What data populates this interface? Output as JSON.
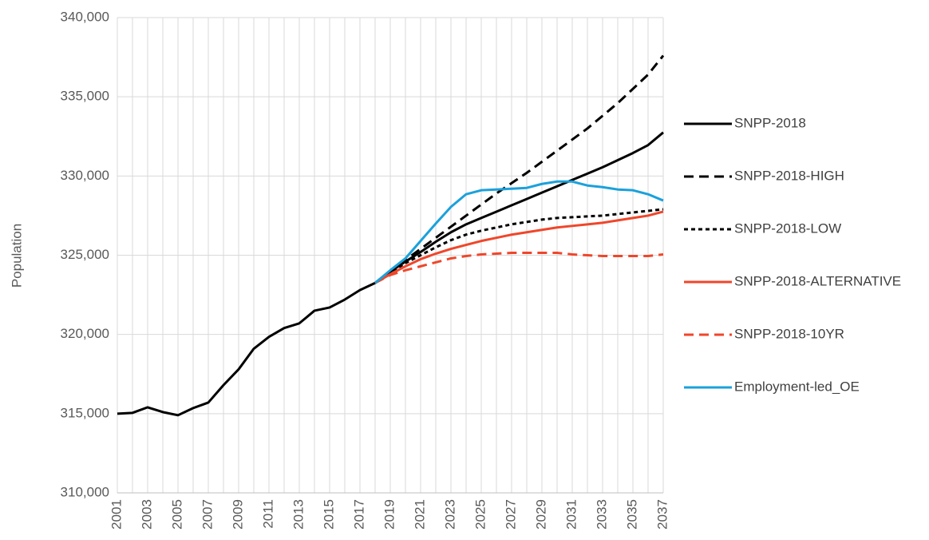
{
  "chart_data": {
    "type": "line",
    "y_label": "Population",
    "categories": [
      "2001",
      null,
      "2003",
      null,
      "2005",
      null,
      "2007",
      null,
      "2009",
      null,
      "2011",
      null,
      "2013",
      null,
      "2015",
      null,
      "2017",
      null,
      "2019",
      null,
      "2021",
      null,
      "2023",
      null,
      "2025",
      null,
      "2027",
      null,
      "2029",
      null,
      "2031",
      null,
      "2033",
      null,
      "2035",
      null,
      "2037"
    ],
    "ylim": [
      310000,
      340000
    ],
    "yticks": [
      {
        "value": 310000,
        "label": "310,000"
      },
      {
        "value": 315000,
        "label": "315,000"
      },
      {
        "value": 320000,
        "label": "320,000"
      },
      {
        "value": 325000,
        "label": "325,000"
      },
      {
        "value": 330000,
        "label": "330,000"
      },
      {
        "value": 335000,
        "label": "335,000"
      },
      {
        "value": 340000,
        "label": "340,000"
      }
    ],
    "grid": true,
    "legend": "right",
    "series": [
      {
        "name": "SNPP-2018",
        "color": "#000000",
        "style": "solid",
        "values": [
          315000,
          315050,
          315400,
          315100,
          314900,
          315350,
          315700,
          316800,
          317800,
          319100,
          319850,
          320400,
          320700,
          321500,
          321700,
          322200,
          322800,
          323250,
          323950,
          324600,
          325200,
          325850,
          326450,
          326950,
          327350,
          327750,
          328150,
          328550,
          328950,
          329350,
          329750,
          330150,
          330550,
          331000,
          331450,
          331950,
          332750
        ]
      },
      {
        "name": "SNPP-2018-HIGH",
        "color": "#000000",
        "style": "dash",
        "values": [
          null,
          null,
          null,
          null,
          null,
          null,
          null,
          null,
          null,
          null,
          null,
          null,
          null,
          null,
          null,
          null,
          null,
          323250,
          324000,
          324700,
          325400,
          326100,
          326800,
          327500,
          328200,
          328900,
          329550,
          330200,
          330900,
          331600,
          332300,
          333000,
          333800,
          334600,
          335500,
          336400,
          337600
        ]
      },
      {
        "name": "SNPP-2018-LOW",
        "color": "#000000",
        "style": "dot",
        "values": [
          null,
          null,
          null,
          null,
          null,
          null,
          null,
          null,
          null,
          null,
          null,
          null,
          null,
          null,
          null,
          null,
          null,
          323250,
          323900,
          324500,
          325000,
          325500,
          325950,
          326300,
          326550,
          326750,
          326950,
          327100,
          327250,
          327350,
          327400,
          327450,
          327500,
          327600,
          327700,
          327800,
          327900
        ]
      },
      {
        "name": "SNPP-2018-ALTERNATIVE",
        "color": "#f0462a",
        "style": "solid",
        "values": [
          null,
          null,
          null,
          null,
          null,
          null,
          null,
          null,
          null,
          null,
          null,
          null,
          null,
          null,
          null,
          null,
          null,
          323250,
          323800,
          324300,
          324750,
          325100,
          325400,
          325650,
          325900,
          326100,
          326300,
          326450,
          326600,
          326750,
          326850,
          326950,
          327050,
          327200,
          327350,
          327500,
          327750
        ]
      },
      {
        "name": "SNPP-2018-10YR",
        "color": "#f0462a",
        "style": "dash",
        "values": [
          null,
          null,
          null,
          null,
          null,
          null,
          null,
          null,
          null,
          null,
          null,
          null,
          null,
          null,
          null,
          null,
          null,
          323250,
          323750,
          324050,
          324300,
          324550,
          324800,
          324950,
          325050,
          325100,
          325150,
          325150,
          325150,
          325150,
          325050,
          325000,
          324950,
          324950,
          324950,
          324950,
          325050
        ]
      },
      {
        "name": "Employment-led_OE",
        "color": "#1ba1db",
        "style": "solid",
        "values": [
          null,
          null,
          null,
          null,
          null,
          null,
          null,
          null,
          null,
          null,
          null,
          null,
          null,
          null,
          null,
          null,
          null,
          323250,
          324050,
          324800,
          325900,
          327000,
          328050,
          328850,
          329100,
          329150,
          329200,
          329250,
          329500,
          329650,
          329650,
          329400,
          329300,
          329150,
          329100,
          328850,
          328450
        ]
      }
    ]
  }
}
